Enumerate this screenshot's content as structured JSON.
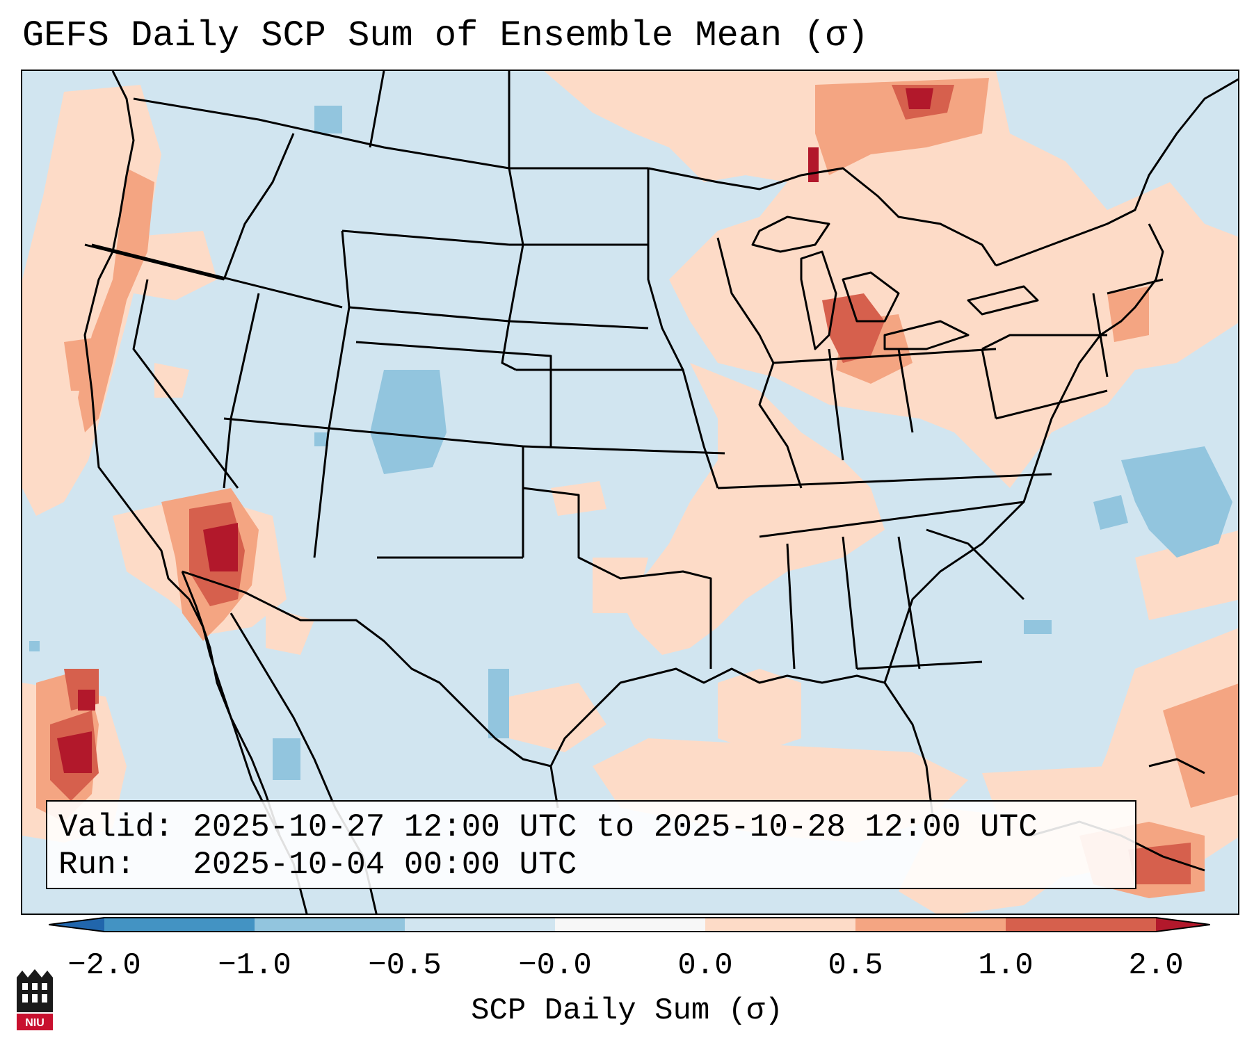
{
  "title": "GEFS Daily SCP Sum of Ensemble Mean (σ)",
  "info": {
    "valid_label": "Valid:",
    "valid_value": "2025-10-27 12:00 UTC to 2025-10-28 12:00 UTC",
    "run_label": "Run:",
    "run_value": "2025-10-04 00:00 UTC"
  },
  "colorbar": {
    "label": "SCP Daily Sum (σ)",
    "ticks": [
      "−2.0",
      "−1.0",
      "−0.5",
      "−0.0",
      "0.0",
      "0.5",
      "1.0",
      "2.0"
    ],
    "colors": [
      "#4393c3",
      "#92c5de",
      "#d1e5f0",
      "#f7f7f7",
      "#fddbc7",
      "#f4a582",
      "#d6604d"
    ],
    "under_color": "#2166ac",
    "over_color": "#b2182b"
  },
  "map": {
    "background_value_color": "#d1e5f0",
    "region": "CONUS",
    "features": [
      "state boundaries",
      "coastlines",
      "international borders"
    ]
  },
  "logo": {
    "text": "NIU",
    "icon": "niu-logo-icon"
  }
}
